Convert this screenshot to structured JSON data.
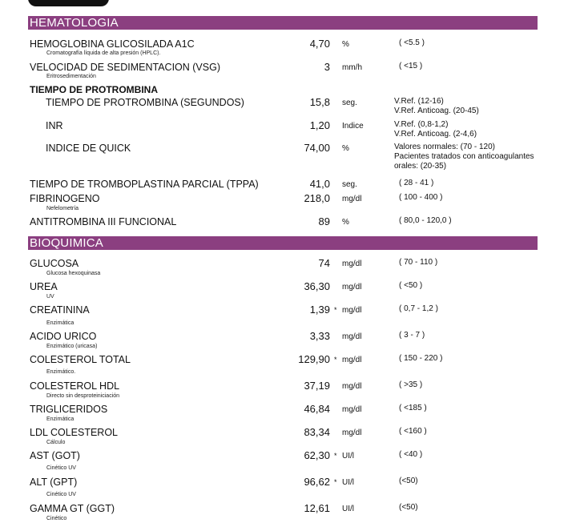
{
  "sections": {
    "hematologia": "HEMATOLOGIA",
    "bioquimica": "BIOQUIMICA"
  },
  "hema": {
    "hba1c": {
      "name": "HEMOGLOBINA GLICOSILADA A1C",
      "method": "Cromatografía líquida de alta presión (HPLC).",
      "value": "4,70",
      "unit": "%",
      "ref": "( <5.5 )"
    },
    "vsg": {
      "name": "VELOCIDAD DE SEDIMENTACION (VSG)",
      "method": "Eritrosedimentación",
      "value": "3",
      "unit": "mm/h",
      "ref": "( <15 )"
    },
    "tp_header": "TIEMPO DE PROTROMBINA",
    "tp_seg": {
      "name": "TIEMPO DE PROTROMBINA (SEGUNDOS)",
      "value": "15,8",
      "unit": "seg.",
      "ref1": "V.Ref. (12-16)",
      "ref2": "V.Ref. Anticoag. (20-45)"
    },
    "inr": {
      "name": "INR",
      "value": "1,20",
      "unit": "Indice",
      "ref1": "V.Ref. (0,8-1,2)",
      "ref2": "V.Ref. Anticoag. (2-4,6)"
    },
    "quick": {
      "name": "INDICE DE QUICK",
      "value": "74,00",
      "unit": "%",
      "ref1": "Valores normales: (70 - 120)",
      "ref2": "Pacientes tratados con anticoagulantes",
      "ref3": "orales: (20-35)"
    },
    "tppa": {
      "name": "TIEMPO DE TROMBOPLASTINA PARCIAL (TPPA)",
      "value": "41,0",
      "unit": "seg.",
      "ref": "( 28 - 41 )"
    },
    "fibrinogeno": {
      "name": "FIBRINOGENO",
      "method": "Nefelometría",
      "value": "218,0",
      "unit": "mg/dl",
      "ref": "( 100 - 400 )"
    },
    "antitrombina": {
      "name": "ANTITROMBINA III FUNCIONAL",
      "value": "89",
      "unit": "%",
      "ref": "( 80,0 - 120,0 )"
    }
  },
  "bio": {
    "glucosa": {
      "name": "GLUCOSA",
      "method": "Glucosa hexoquinasa",
      "value": "74",
      "unit": "mg/dl",
      "ref": "( 70 - 110 )"
    },
    "urea": {
      "name": "UREA",
      "method": "UV",
      "value": "36,30",
      "unit": "mg/dl",
      "ref": "( <50 )"
    },
    "creatinina": {
      "name": "CREATININA",
      "method": "Enzimática",
      "value": "1,39",
      "flag": "*",
      "unit": "mg/dl",
      "ref": "( 0,7 - 1,2 )"
    },
    "urico": {
      "name": "ACIDO URICO",
      "method": "Enzimático (uricasa)",
      "value": "3,33",
      "unit": "mg/dl",
      "ref": "( 3 - 7 )"
    },
    "colesterol": {
      "name": "COLESTEROL TOTAL",
      "method": "Enzimático.",
      "value": "129,90",
      "flag": "*",
      "unit": "mg/dl",
      "ref": "( 150 - 220 )"
    },
    "hdl": {
      "name": "COLESTEROL HDL",
      "method": "Directo sin desproteinicіación",
      "value": "37,19",
      "unit": "mg/dl",
      "ref": "( >35 )"
    },
    "trigliceridos": {
      "name": "TRIGLICERIDOS",
      "method": "Enzimática",
      "value": "46,84",
      "unit": "mg/dl",
      "ref": "( <185 )"
    },
    "ldl": {
      "name": "LDL COLESTEROL",
      "method": "Cálculo",
      "value": "83,34",
      "unit": "mg/dl",
      "ref": "( <160 )"
    },
    "ast": {
      "name": "AST (GOT)",
      "method": "Cinético UV",
      "value": "62,30",
      "flag": "*",
      "unit": "UI/l",
      "ref": "( <40 )"
    },
    "alt": {
      "name": "ALT (GPT)",
      "method": "Cinético UV",
      "value": "96,62",
      "flag": "*",
      "unit": "UI/l",
      "ref": "(<50)"
    },
    "ggt": {
      "name": "GAMMA GT (GGT)",
      "method": "Cinético",
      "value": "12,61",
      "unit": "UI/l",
      "ref": "(<50)"
    }
  }
}
